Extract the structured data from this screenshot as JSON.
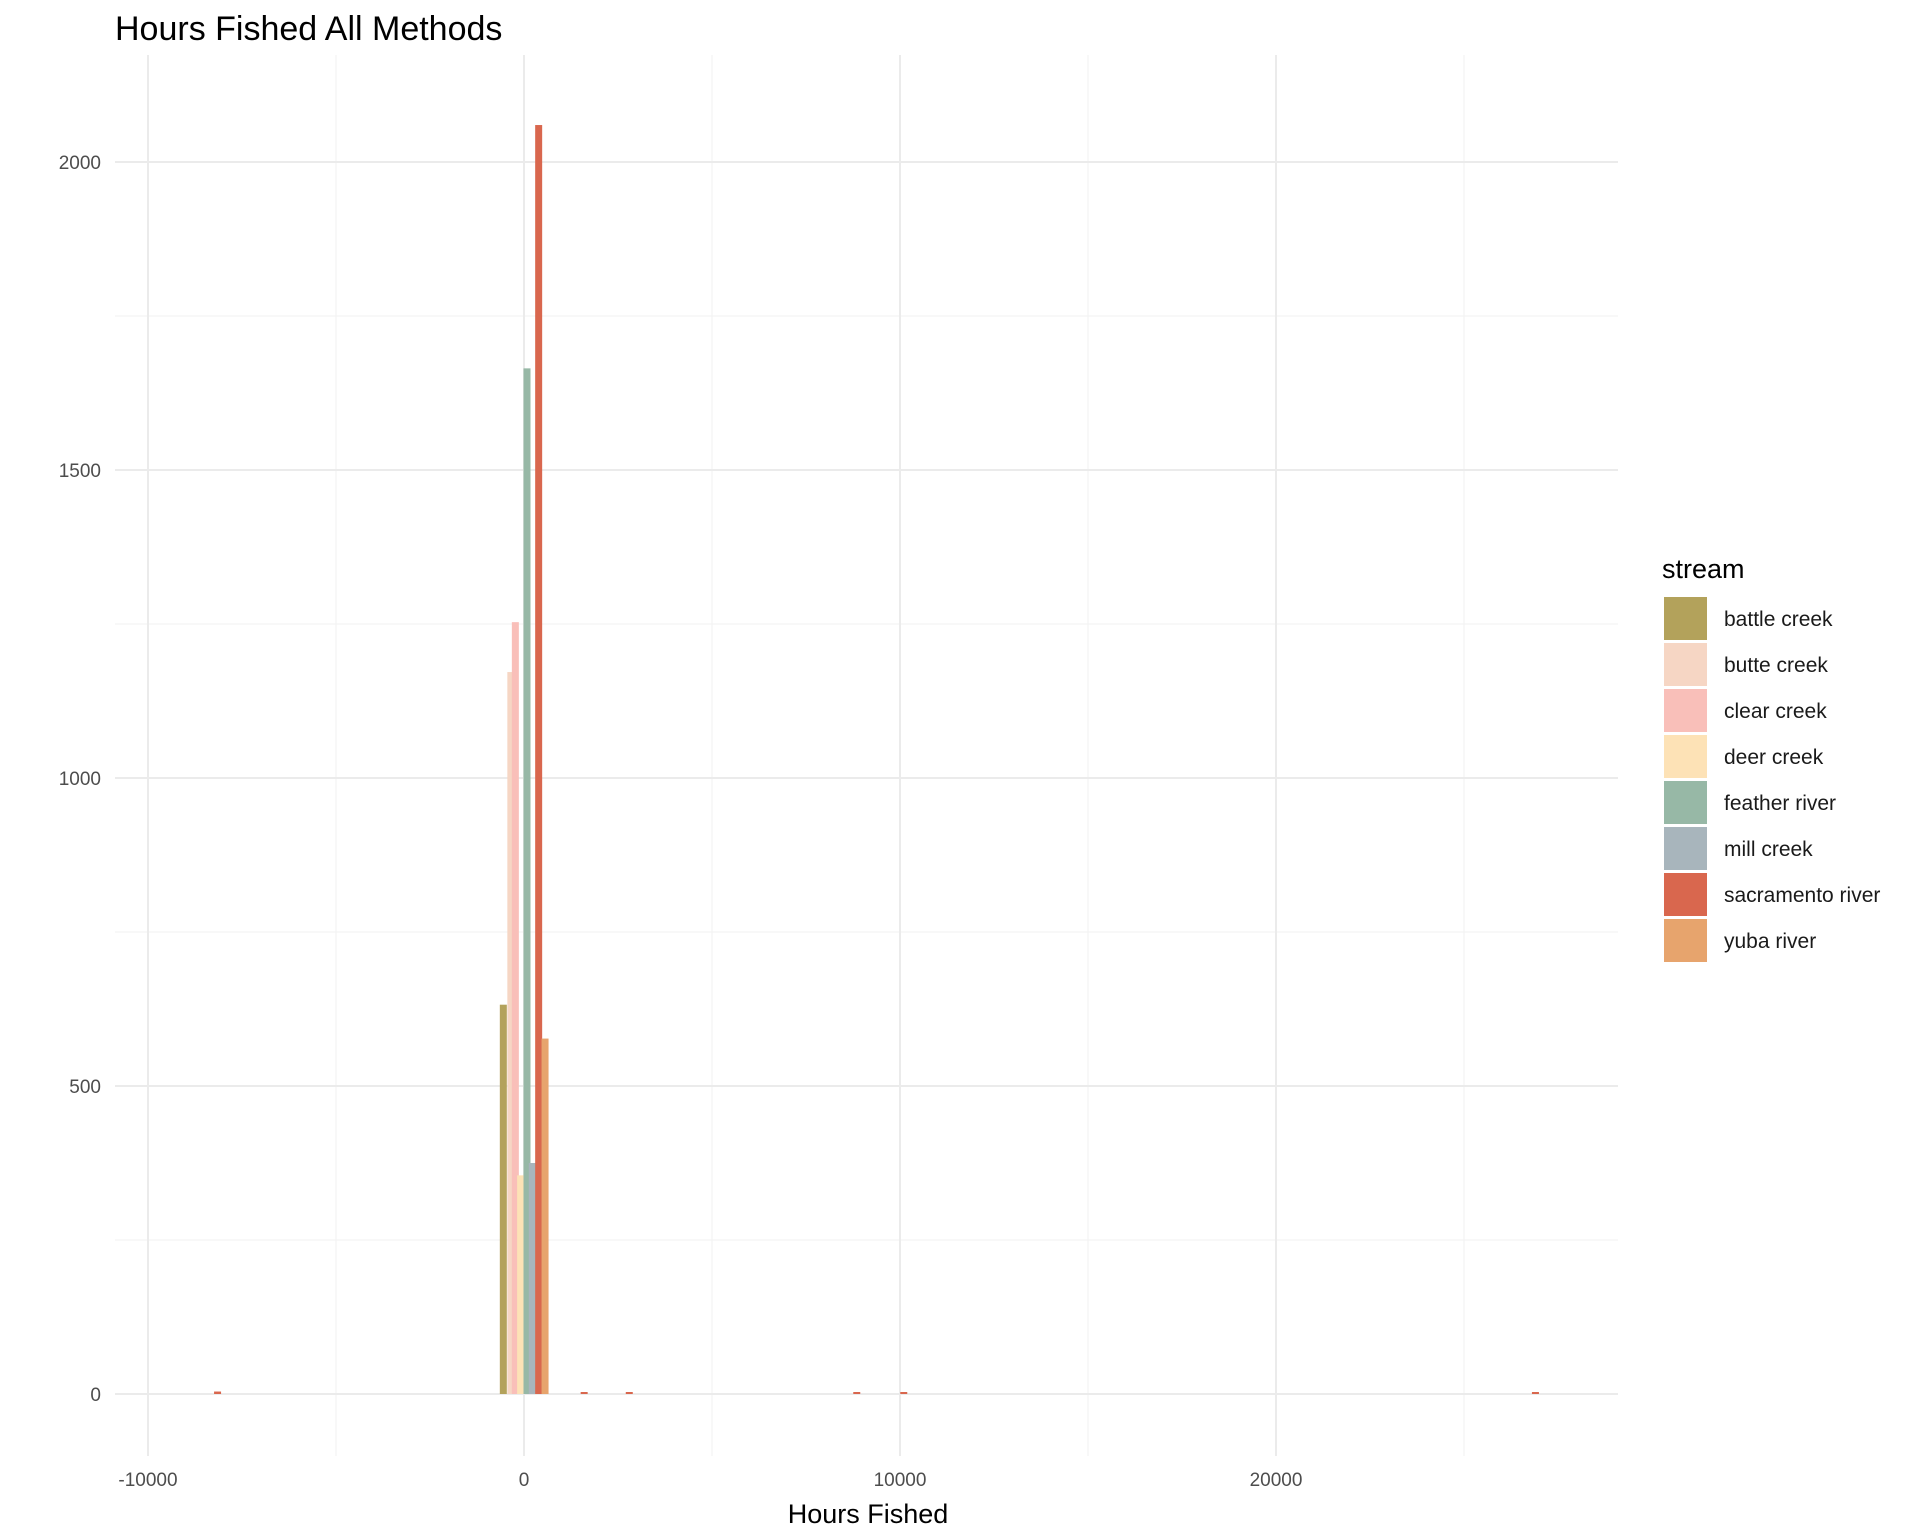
{
  "chart_data": {
    "type": "bar",
    "subtype": "histogram (dodged)",
    "title": "Hours Fished All Methods",
    "xlabel": "Hours Fished",
    "ylabel": "",
    "xlim": [
      -10000,
      29000
    ],
    "ylim": [
      -100,
      2150
    ],
    "x_ticks": [
      -10000,
      0,
      10000,
      20000
    ],
    "x_tick_labels": [
      "-10000",
      "0",
      "10000",
      "20000"
    ],
    "y_ticks": [
      0,
      500,
      1000,
      1500,
      2000
    ],
    "y_tick_labels": [
      "0",
      "500",
      "1000",
      "1500",
      "2000"
    ],
    "grid": true,
    "legend": {
      "title": "stream",
      "position": "right"
    },
    "series": [
      {
        "name": "battle creek",
        "color": "#b3a25b",
        "points": [
          {
            "x": -550,
            "count": 632
          }
        ]
      },
      {
        "name": "butte creek",
        "color": "#f6d6c4",
        "points": [
          {
            "x": -350,
            "count": 1172
          }
        ]
      },
      {
        "name": "clear creek",
        "color": "#f9bfb9",
        "points": [
          {
            "x": -230,
            "count": 1253
          }
        ]
      },
      {
        "name": "deer creek",
        "color": "#fde2b6",
        "points": [
          {
            "x": -90,
            "count": 355
          }
        ]
      },
      {
        "name": "feather river",
        "color": "#97b8a6",
        "points": [
          {
            "x": 80,
            "count": 1665
          }
        ]
      },
      {
        "name": "mill creek",
        "color": "#a8b5bc",
        "points": [
          {
            "x": 220,
            "count": 375
          }
        ]
      },
      {
        "name": "sacramento river",
        "color": "#d9674e",
        "points": [
          {
            "x": -8150,
            "count": 4
          },
          {
            "x": 390,
            "count": 2060
          },
          {
            "x": 1600,
            "count": 3
          },
          {
            "x": 2800,
            "count": 2
          },
          {
            "x": 8850,
            "count": 3
          },
          {
            "x": 10100,
            "count": 3
          },
          {
            "x": 26900,
            "count": 3
          }
        ]
      },
      {
        "name": "yuba river",
        "color": "#e7a46d",
        "points": [
          {
            "x": 560,
            "count": 577
          }
        ]
      }
    ]
  }
}
